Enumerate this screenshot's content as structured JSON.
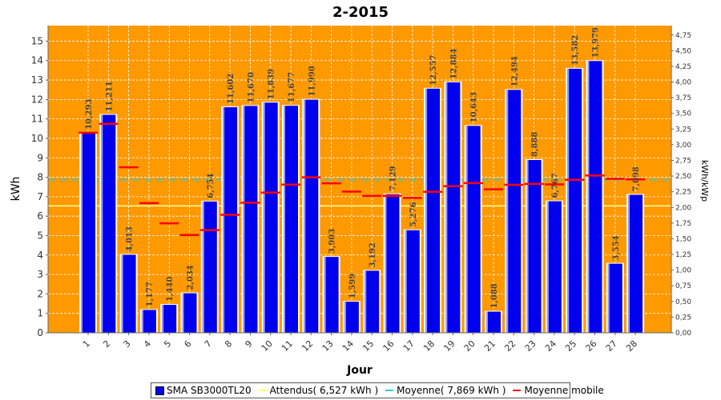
{
  "chart_data": {
    "type": "bar",
    "title": "2-2015",
    "xlabel": "Jour",
    "ylabel": "kWh",
    "y2label": "kWh/kWp",
    "ylim": [
      0,
      15.8
    ],
    "y2lim": [
      0,
      4.9
    ],
    "yticks": [
      "0",
      "1",
      "2",
      "3",
      "4",
      "5",
      "6",
      "7",
      "8",
      "9",
      "10",
      "11",
      "12",
      "13",
      "14",
      "15"
    ],
    "y2ticks": [
      "0,00",
      "0,25",
      "0,50",
      "0,75",
      "1,00",
      "1,25",
      "1,50",
      "1,75",
      "2,00",
      "2,25",
      "2,50",
      "2,75",
      "3,00",
      "3,25",
      "3,50",
      "3,75",
      "4,00",
      "4,25",
      "4,50",
      "4,75"
    ],
    "categories": [
      "1",
      "2",
      "3",
      "4",
      "5",
      "6",
      "7",
      "8",
      "9",
      "10",
      "11",
      "12",
      "13",
      "14",
      "15",
      "16",
      "17",
      "18",
      "19",
      "20",
      "21",
      "22",
      "23",
      "24",
      "25",
      "26",
      "27",
      "28"
    ],
    "series": [
      {
        "name": "SMA SB3000TL20",
        "type": "bar",
        "color": "#0000ee",
        "values": [
          10.293,
          11.211,
          4.013,
          1.177,
          1.44,
          2.034,
          6.754,
          11.602,
          11.67,
          11.839,
          11.677,
          11.99,
          3.903,
          1.599,
          3.192,
          7.129,
          5.276,
          12.557,
          12.884,
          10.643,
          1.088,
          12.494,
          8.888,
          6.767,
          13.582,
          13.979,
          3.554,
          7.098
        ],
        "labels": [
          "10,293",
          "11,211",
          "4,013",
          "1,177",
          "1,440",
          "2,034",
          "6,754",
          "11,602",
          "11,670",
          "11,839",
          "11,677",
          "11,990",
          "3,903",
          "1,599",
          "3,192",
          "7,129",
          "5,276",
          "12,557",
          "12,884",
          "10,643",
          "1,088",
          "12,494",
          "8,888",
          "6,767",
          "13,582",
          "13,979",
          "3,554",
          "7,098"
        ]
      },
      {
        "name": "Moyenne mobile",
        "type": "step",
        "color": "#ff0000",
        "values": [
          10.29,
          10.75,
          8.51,
          6.67,
          5.63,
          5.03,
          5.28,
          6.07,
          6.69,
          7.21,
          7.62,
          8.0,
          7.69,
          7.26,
          7.04,
          7.04,
          6.94,
          7.25,
          7.54,
          7.7,
          7.38,
          7.61,
          7.66,
          7.63,
          7.87,
          8.09,
          7.92,
          7.89
        ]
      }
    ],
    "reference_lines": [
      {
        "name": "Attendus( 6,527 kWh )",
        "value": 6.527,
        "color": "#ffff99",
        "style": "solid"
      },
      {
        "name": "Moyenne( 7,869 kWh )",
        "value": 7.869,
        "color": "#33cccc",
        "style": "dashed"
      }
    ],
    "legend_position": "bottom",
    "colors": {
      "plot_bg": "#ff9900",
      "grid": "#ffffff"
    }
  },
  "legend": {
    "items": [
      {
        "label": "SMA SB3000TL20",
        "kind": "box",
        "color": "#0000ee"
      },
      {
        "label": "Attendus( 6,527 kWh )",
        "kind": "line",
        "color": "#ffff66"
      },
      {
        "label": "Moyenne( 7,869 kWh )",
        "kind": "line",
        "color": "#33cccc"
      },
      {
        "label": "Moyenne mobile",
        "kind": "line",
        "color": "#ff0000"
      }
    ]
  }
}
